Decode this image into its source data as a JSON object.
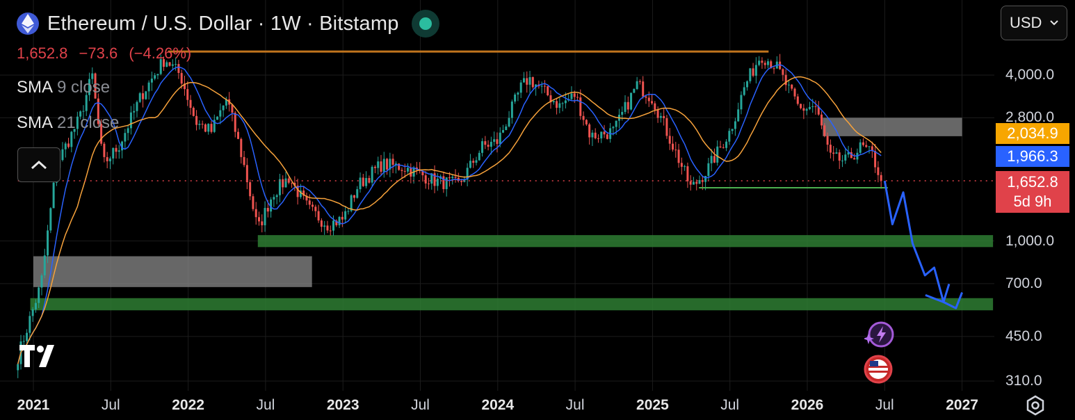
{
  "header": {
    "title": "Ethereum / U.S. Dollar · 1W · Bitstamp",
    "last_price": "1,652.8",
    "change": "−73.6",
    "change_pct": "(−4.26%)"
  },
  "indicators": [
    {
      "name": "SMA",
      "params": "9 close",
      "color": "#2962ff"
    },
    {
      "name": "SMA",
      "params": "21 close",
      "color": "#f7a23b"
    }
  ],
  "currency_selector": {
    "value": "USD"
  },
  "price_tags": [
    {
      "label": "2,034.9",
      "bg": "#f7a600",
      "value": 2034.9
    },
    {
      "label": "1,966.3",
      "bg": "#2962ff",
      "value": 1966.3
    },
    {
      "label": "1,652.8",
      "sub": "5d 9h",
      "bg": "#e0424a",
      "value": 1652.8
    }
  ],
  "chart_data": {
    "type": "candlestick",
    "symbol": "Ethereum / U.S. Dollar",
    "interval": "1W",
    "exchange": "Bitstamp",
    "y_scale": "log",
    "y_ticks": [
      "4,000.0",
      "2,800.0",
      "1,000.0",
      "700.0",
      "450.0",
      "310.0"
    ],
    "y_tick_values": [
      4000,
      2800,
      1000,
      700,
      450,
      310
    ],
    "x_ticks": [
      {
        "label": "2021",
        "year": true,
        "t": 2021.0
      },
      {
        "label": "Jul",
        "year": false,
        "t": 2021.5
      },
      {
        "label": "2022",
        "year": true,
        "t": 2022.0
      },
      {
        "label": "Jul",
        "year": false,
        "t": 2022.5
      },
      {
        "label": "2023",
        "year": true,
        "t": 2023.0
      },
      {
        "label": "Jul",
        "year": false,
        "t": 2023.5
      },
      {
        "label": "2024",
        "year": true,
        "t": 2024.0
      },
      {
        "label": "Jul",
        "year": false,
        "t": 2024.5
      },
      {
        "label": "2025",
        "year": true,
        "t": 2025.0
      },
      {
        "label": "Jul",
        "year": false,
        "t": 2025.5
      },
      {
        "label": "2026",
        "year": true,
        "t": 2026.0
      },
      {
        "label": "Jul",
        "year": false,
        "t": 2026.5
      },
      {
        "label": "2027",
        "year": true,
        "t": 2027.0
      }
    ],
    "price_path": [
      [
        2020.9,
        380
      ],
      [
        2021.05,
        700
      ],
      [
        2021.15,
        1900
      ],
      [
        2021.3,
        2800
      ],
      [
        2021.38,
        4000
      ],
      [
        2021.45,
        1900
      ],
      [
        2021.55,
        2200
      ],
      [
        2021.7,
        3400
      ],
      [
        2021.85,
        4600
      ],
      [
        2021.95,
        4000
      ],
      [
        2022.05,
        2700
      ],
      [
        2022.15,
        2500
      ],
      [
        2022.25,
        3300
      ],
      [
        2022.35,
        2000
      ],
      [
        2022.45,
        1100
      ],
      [
        2022.55,
        1500
      ],
      [
        2022.65,
        1700
      ],
      [
        2022.78,
        1300
      ],
      [
        2022.9,
        1150
      ],
      [
        2023.0,
        1200
      ],
      [
        2023.1,
        1600
      ],
      [
        2023.25,
        1900
      ],
      [
        2023.4,
        1850
      ],
      [
        2023.6,
        1650
      ],
      [
        2023.75,
        1600
      ],
      [
        2023.9,
        2200
      ],
      [
        2024.0,
        2300
      ],
      [
        2024.15,
        3600
      ],
      [
        2024.2,
        3900
      ],
      [
        2024.4,
        3100
      ],
      [
        2024.5,
        3400
      ],
      [
        2024.6,
        2400
      ],
      [
        2024.75,
        2500
      ],
      [
        2024.9,
        3700
      ],
      [
        2025.0,
        3300
      ],
      [
        2025.15,
        2100
      ],
      [
        2025.25,
        1550
      ],
      [
        2025.35,
        1800
      ],
      [
        2025.5,
        2500
      ],
      [
        2025.6,
        3700
      ],
      [
        2025.7,
        4750
      ],
      [
        2025.8,
        4300
      ],
      [
        2025.95,
        3000
      ],
      [
        2026.05,
        3100
      ],
      [
        2026.15,
        2000
      ],
      [
        2026.25,
        1950
      ],
      [
        2026.35,
        2200
      ],
      [
        2026.42,
        2050
      ],
      [
        2026.48,
        1652.8
      ]
    ],
    "projection": [
      [
        2026.5,
        1652.8
      ],
      [
        2026.55,
        1150
      ],
      [
        2026.62,
        1500
      ],
      [
        2026.68,
        980
      ],
      [
        2026.76,
        750
      ],
      [
        2026.82,
        800
      ],
      [
        2026.88,
        600
      ],
      [
        2026.96,
        570
      ],
      [
        2027.0,
        650
      ]
    ],
    "zones": [
      {
        "kind": "support",
        "t1": 2022.45,
        "t2": 2027.2,
        "low": 950,
        "high": 1050,
        "color": "#2e7d32"
      },
      {
        "kind": "support",
        "t1": 2020.98,
        "t2": 2027.2,
        "low": 560,
        "high": 620,
        "color": "#2e7d32"
      },
      {
        "kind": "resistance",
        "t1": 2021.0,
        "t2": 2022.8,
        "low": 680,
        "high": 880,
        "color": "#8a8a8a"
      },
      {
        "kind": "resistance",
        "t1": 2026.1,
        "t2": 2027.0,
        "low": 2400,
        "high": 2800,
        "color": "#8a8a8a"
      }
    ],
    "lines": [
      {
        "kind": "resistance",
        "t1": 2021.87,
        "t2": 2025.75,
        "price": 4870,
        "color": "#c0741d"
      },
      {
        "kind": "support",
        "t1": 2025.3,
        "t2": 2026.52,
        "price": 1560,
        "color": "#4caf50"
      },
      {
        "kind": "last_price",
        "t1": 2020.9,
        "t2": 2027.5,
        "price": 1652.8,
        "color": "#e0424a"
      }
    ]
  }
}
